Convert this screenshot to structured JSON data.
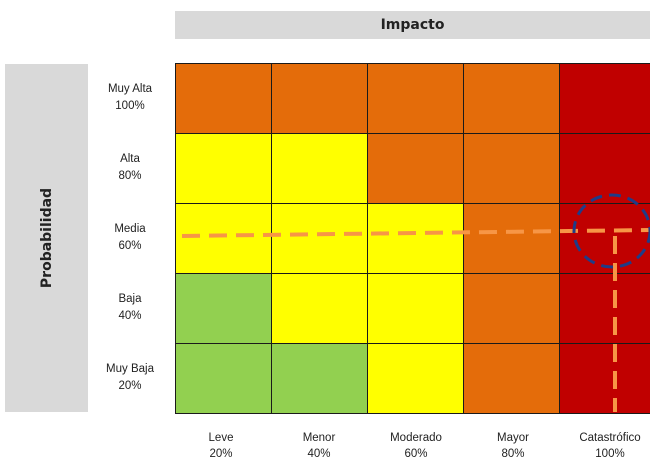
{
  "header": {
    "impact_title": "Impacto"
  },
  "sidebar": {
    "probability_title": "Probabilidad"
  },
  "rows": [
    {
      "name": "Muy Alta",
      "pct": "100%"
    },
    {
      "name": "Alta",
      "pct": "80%"
    },
    {
      "name": "Media",
      "pct": "60%"
    },
    {
      "name": "Baja",
      "pct": "40%"
    },
    {
      "name": "Muy Baja",
      "pct": "20%"
    }
  ],
  "columns": [
    {
      "name": "Leve",
      "pct": "20%"
    },
    {
      "name": "Menor",
      "pct": "40%"
    },
    {
      "name": "Moderado",
      "pct": "60%"
    },
    {
      "name": "Mayor",
      "pct": "80%"
    },
    {
      "name": "Catastrófico",
      "pct": "100%"
    }
  ],
  "colors": {
    "high": "#e46c0a",
    "extreme": "#c00000",
    "moderate": "#ffff00",
    "low": "#92d050",
    "marker_line": "#f79646",
    "marker_circle": "#1f3c88"
  },
  "matrix": [
    [
      "high",
      "high",
      "high",
      "high",
      "extreme"
    ],
    [
      "moderate",
      "moderate",
      "high",
      "high",
      "extreme"
    ],
    [
      "moderate",
      "moderate",
      "moderate",
      "high",
      "extreme"
    ],
    [
      "low",
      "moderate",
      "moderate",
      "high",
      "extreme"
    ],
    [
      "low",
      "low",
      "moderate",
      "high",
      "extreme"
    ]
  ],
  "marker": {
    "row": "Media",
    "column": "Catastrófico"
  }
}
